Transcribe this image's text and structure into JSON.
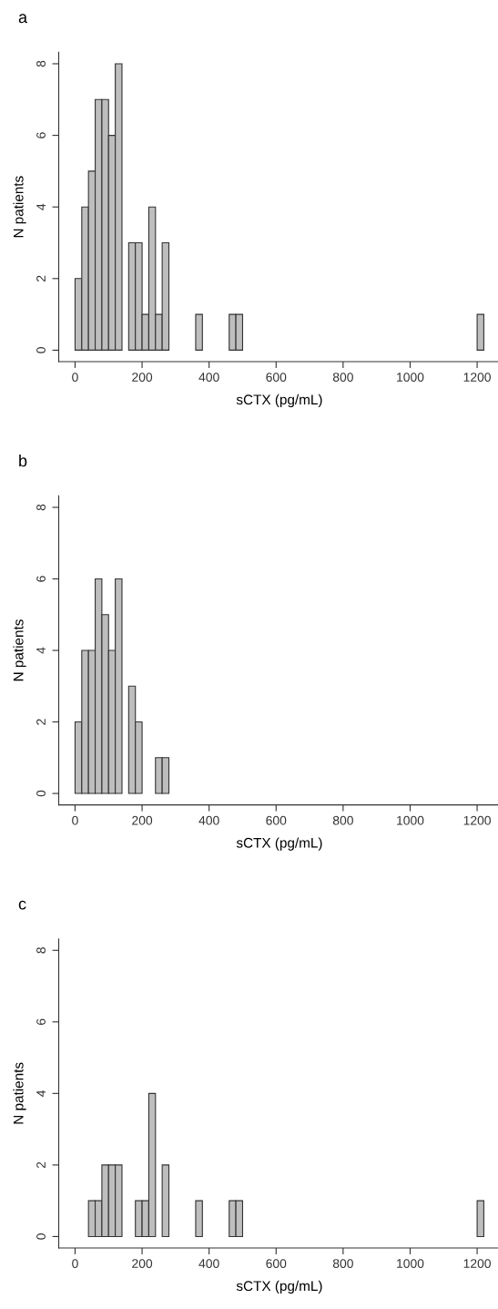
{
  "chart_data": [
    {
      "type": "histogram",
      "title": "a",
      "xlabel": "sCTX (pg/mL)",
      "ylabel": "N patients",
      "color": "#bebebe",
      "bins": [
        0,
        20,
        40,
        60,
        80,
        100,
        120,
        140,
        160,
        180,
        200,
        220,
        240,
        260,
        280,
        300,
        320,
        340,
        360,
        380,
        400,
        420,
        440,
        460,
        480,
        500,
        520,
        540,
        560,
        580,
        600,
        620,
        640,
        660,
        680,
        700,
        720,
        740,
        760,
        780,
        800,
        820,
        840,
        860,
        880,
        900,
        920,
        940,
        960,
        980,
        1000,
        1020,
        1040,
        1060,
        1080,
        1100,
        1120,
        1140,
        1160,
        1180,
        1200,
        1220
      ],
      "values": [
        2,
        4,
        5,
        7,
        7,
        6,
        8,
        0,
        3,
        3,
        1,
        4,
        1,
        3,
        0,
        0,
        0,
        0,
        1,
        0,
        0,
        0,
        0,
        1,
        1,
        0,
        0,
        0,
        0,
        0,
        0,
        0,
        0,
        0,
        0,
        0,
        0,
        0,
        0,
        0,
        0,
        0,
        0,
        0,
        0,
        0,
        0,
        0,
        0,
        0,
        0,
        0,
        0,
        0,
        0,
        0,
        0,
        0,
        0,
        0,
        1
      ],
      "xlim": [
        -48.8,
        1268.8
      ],
      "ylim": [
        -0.32,
        8.32
      ],
      "xticks": [
        0,
        200,
        400,
        600,
        800,
        1000,
        1200
      ],
      "yticks": [
        0,
        2,
        4,
        6,
        8
      ],
      "grid": false
    },
    {
      "type": "histogram",
      "title": "b",
      "xlabel": "sCTX (pg/mL)",
      "ylabel": "N patients",
      "color": "#bebebe",
      "bins": [
        0,
        20,
        40,
        60,
        80,
        100,
        120,
        140,
        160,
        180,
        200,
        220,
        240,
        260,
        280
      ],
      "values": [
        2,
        4,
        4,
        6,
        5,
        4,
        6,
        0,
        3,
        2,
        0,
        0,
        1,
        1
      ],
      "xlim": [
        -48.8,
        1268.8
      ],
      "ylim": [
        -0.32,
        8.32
      ],
      "xticks": [
        0,
        200,
        400,
        600,
        800,
        1000,
        1200
      ],
      "yticks": [
        0,
        2,
        4,
        6,
        8
      ],
      "grid": false
    },
    {
      "type": "histogram",
      "title": "c",
      "xlabel": "sCTX (pg/mL)",
      "ylabel": "N patients",
      "color": "#bebebe",
      "bins": [
        40,
        60,
        80,
        100,
        120,
        140,
        160,
        180,
        200,
        220,
        240,
        260,
        280,
        300,
        320,
        340,
        360,
        380,
        400,
        420,
        440,
        460,
        480,
        500,
        520,
        540,
        560,
        580,
        600,
        620,
        640,
        660,
        680,
        700,
        720,
        740,
        760,
        780,
        800,
        820,
        840,
        860,
        880,
        900,
        920,
        940,
        960,
        980,
        1000,
        1020,
        1040,
        1060,
        1080,
        1100,
        1120,
        1140,
        1160,
        1180,
        1200,
        1220
      ],
      "values": [
        1,
        1,
        2,
        2,
        2,
        0,
        0,
        1,
        1,
        4,
        0,
        2,
        0,
        0,
        0,
        0,
        1,
        0,
        0,
        0,
        0,
        1,
        1,
        0,
        0,
        0,
        0,
        0,
        0,
        0,
        0,
        0,
        0,
        0,
        0,
        0,
        0,
        0,
        0,
        0,
        0,
        0,
        0,
        0,
        0,
        0,
        0,
        0,
        0,
        0,
        0,
        0,
        0,
        0,
        0,
        0,
        0,
        0,
        1
      ],
      "xlim": [
        -48.8,
        1268.8
      ],
      "ylim": [
        -0.32,
        8.32
      ],
      "xticks": [
        0,
        200,
        400,
        600,
        800,
        1000,
        1200
      ],
      "yticks": [
        0,
        2,
        4,
        6,
        8
      ],
      "grid": false
    }
  ]
}
